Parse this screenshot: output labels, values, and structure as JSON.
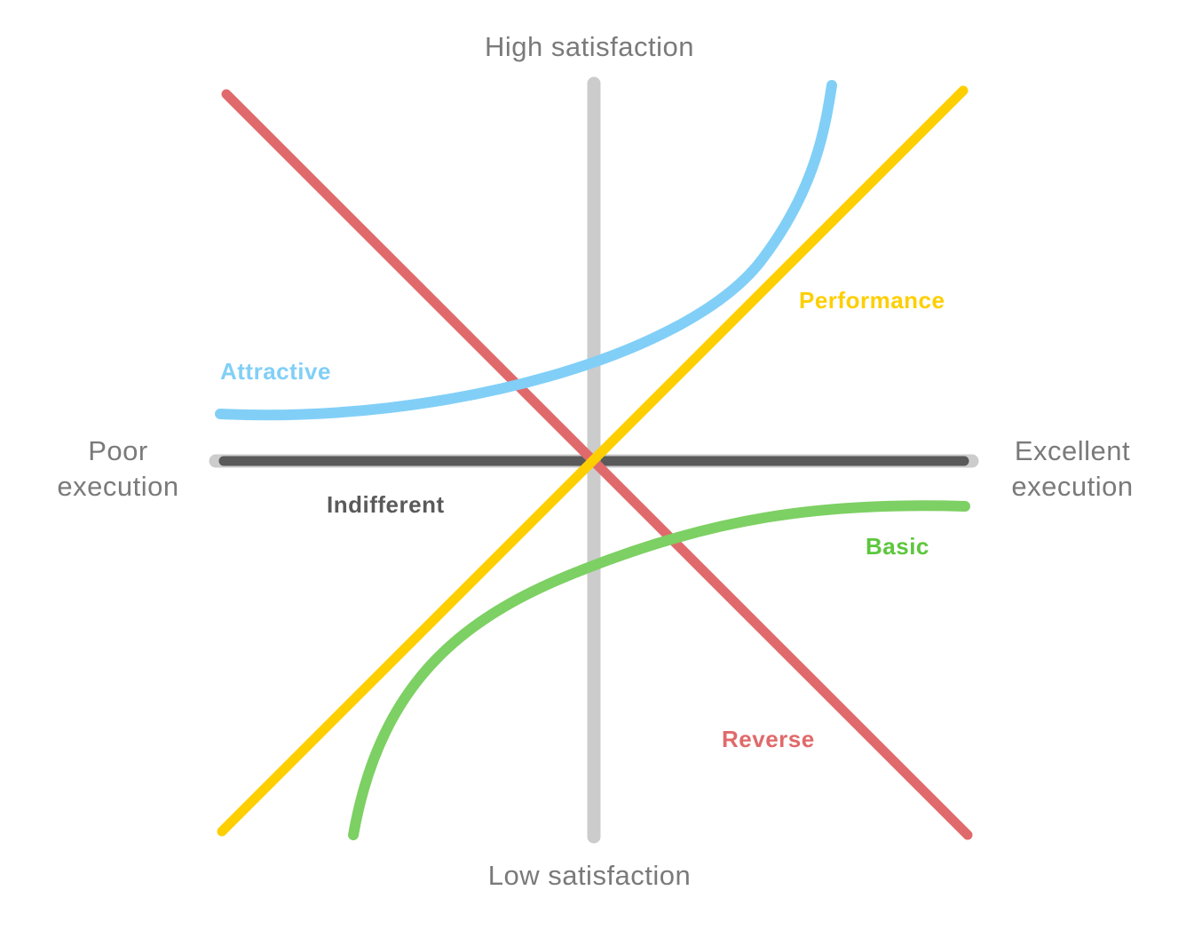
{
  "axes": {
    "top_label": "High satisfaction",
    "bottom_label": "Low satisfaction",
    "left_label_line1": "Poor",
    "left_label_line2": "execution",
    "right_label_line1": "Excellent",
    "right_label_line2": "execution"
  },
  "curves": {
    "attractive": {
      "label": "Attractive",
      "color": "#81cff7"
    },
    "performance": {
      "label": "Performance",
      "color": "#fdcf00"
    },
    "indifferent": {
      "label": "Indifferent",
      "color": "#5a5a5a"
    },
    "basic": {
      "label": "Basic",
      "color": "#5cc73e"
    },
    "reverse": {
      "label": "Reverse",
      "color": "#e06a6b"
    }
  },
  "colors": {
    "axis": "#cccccc",
    "axis_text": "#7a7a7a"
  }
}
